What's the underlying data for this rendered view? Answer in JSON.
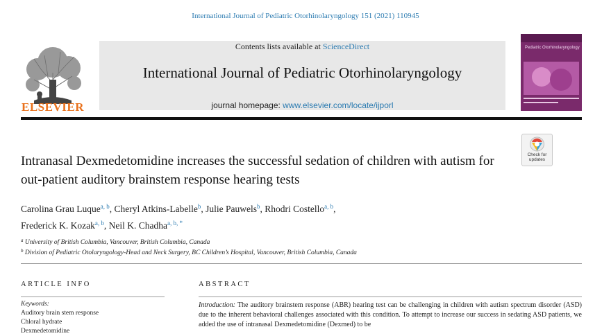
{
  "citation": "International Journal of Pediatric Otorhinolaryngology 151 (2021) 110945",
  "publisher": {
    "name": "ELSEVIER",
    "accent_color": "#e9711c"
  },
  "banner": {
    "contents_prefix": "Contents lists available at ",
    "contents_link": "ScienceDirect",
    "journal_title": "International Journal of Pediatric Otorhinolaryngology",
    "homepage_prefix": "journal homepage: ",
    "homepage_link": "www.elsevier.com/locate/ijporl"
  },
  "cover": {
    "title": "Pediatric Otorhinolaryngology",
    "color": "#7a2a6b"
  },
  "crossmark": {
    "line1": "Check for",
    "line2": "updates"
  },
  "article": {
    "title": "Intranasal Dexmedetomidine increases the successful sedation of children with autism for out-patient auditory brainstem response hearing tests",
    "authors": [
      {
        "name": "Carolina Grau Luque",
        "aff": "a, b",
        "sep": ", "
      },
      {
        "name": "Cheryl Atkins-Labelle",
        "aff": "b",
        "sep": ", "
      },
      {
        "name": "Julie Pauwels",
        "aff": "b",
        "sep": ", "
      },
      {
        "name": "Rhodri Costello",
        "aff": "a, b",
        "sep": ","
      },
      {
        "name": "Frederick K. Kozak",
        "aff": "a, b",
        "sep": ", "
      },
      {
        "name": "Neil K. Chadha",
        "aff": "a, b, *",
        "sep": ""
      }
    ],
    "affiliations": [
      {
        "key": "a",
        "text": "University of British Columbia, Vancouver, British Columbia, Canada"
      },
      {
        "key": "b",
        "text": "Division of Pediatric Otolaryngology-Head and Neck Surgery, BC Children’s Hospital, Vancouver, British Columbia, Canada"
      }
    ]
  },
  "article_info": {
    "heading": "ARTICLE INFO",
    "keywords_label": "Keywords:",
    "keywords": [
      "Auditory brain stem response",
      "Chloral hydrate",
      "Dexmedetomidine"
    ]
  },
  "abstract": {
    "heading": "ABSTRACT",
    "intro_label": "Introduction:",
    "text": " The auditory brainstem response (ABR) hearing test can be challenging in children with autism spectrum disorder (ASD) due to the inherent behavioral challenges associated with this condition. To attempt to increase our success in sedating ASD patients, we added the use of intranasal Dexmedetomidine (Dexmed) to be"
  }
}
